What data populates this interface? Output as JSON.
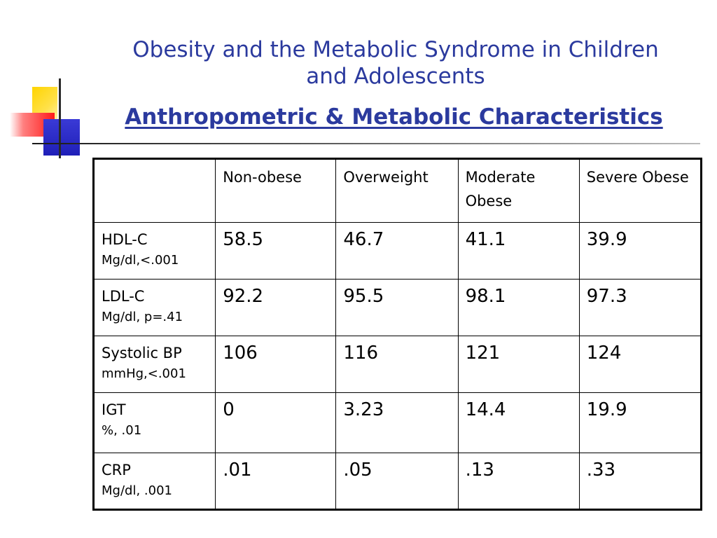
{
  "slide": {
    "title_lines": [
      "Obesity and the Metabolic Syndrome in Children",
      "and Adolescents"
    ],
    "subtitle": "Anthropometric & Metabolic Characteristics",
    "colors": {
      "title": "#2b3a9e",
      "deco_yellow": "#ffd400",
      "deco_red": "#ff1a1a",
      "deco_blue": "#1f1fb8"
    }
  },
  "table": {
    "columns": [
      "",
      "Non-obese",
      "Overweight",
      "Moderate Obese",
      "Severe Obese"
    ],
    "rows": [
      {
        "label": "HDL-C",
        "unit": "Mg/dl,<.001",
        "values": [
          "58.5",
          "46.7",
          "41.1",
          "39.9"
        ]
      },
      {
        "label": "LDL-C",
        "unit": "Mg/dl, p=.41",
        "values": [
          "92.2",
          "95.5",
          "98.1",
          "97.3"
        ]
      },
      {
        "label": "Systolic BP",
        "unit": "mmHg,<.001",
        "values": [
          "106",
          "116",
          "121",
          "124"
        ]
      },
      {
        "label": "IGT",
        "unit": "%, .01",
        "values": [
          "0",
          "3.23",
          "14.4",
          "19.9"
        ]
      },
      {
        "label": "CRP",
        "unit": "Mg/dl, .001",
        "values": [
          ".01",
          ".05",
          ".13",
          ".33"
        ]
      }
    ]
  }
}
